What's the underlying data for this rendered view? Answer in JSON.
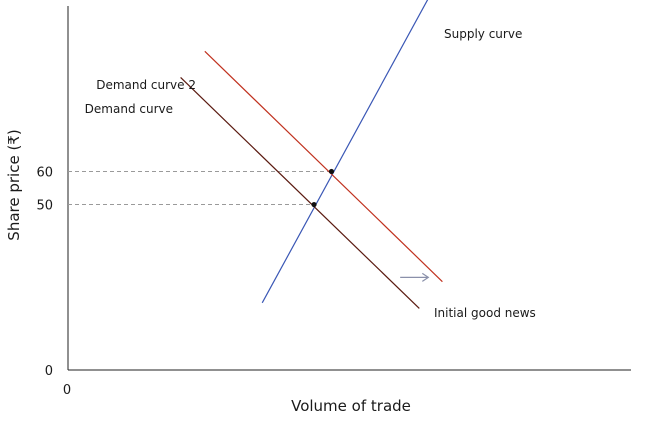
{
  "chart_data": {
    "type": "line",
    "xlabel": "Volume of trade",
    "ylabel": "Share price (₹)",
    "x_tick_labels": [
      "0"
    ],
    "y_ticks": [
      {
        "value": 0,
        "label": "0"
      },
      {
        "value": 50,
        "label": "50"
      },
      {
        "value": 60,
        "label": "60"
      }
    ],
    "xlim": [
      0,
      100
    ],
    "ylim": [
      0,
      110
    ],
    "grid": false,
    "series": [
      {
        "name": "Supply curve",
        "color": "#3a57b5",
        "points": [
          [
            34.5,
            20.3
          ],
          [
            64.2,
            112.9
          ]
        ]
      },
      {
        "name": "Demand curve",
        "color": "#5a1a10",
        "points": [
          [
            20,
            88.4
          ],
          [
            62.4,
            18.6
          ]
        ]
      },
      {
        "name": "Demand curve 2",
        "color": "#c0311e",
        "points": [
          [
            24.3,
            96.3
          ],
          [
            66.5,
            26.7
          ]
        ]
      }
    ],
    "equilibria": [
      {
        "x": 43.7,
        "y": 50
      },
      {
        "x": 46.8,
        "y": 60
      }
    ],
    "annotations": [
      {
        "text": "Initial good news",
        "x": 64.8,
        "y": 19.5
      },
      {
        "arrow_direction": "right",
        "from": [
          59,
          28
        ],
        "to": [
          64,
          28
        ],
        "color": "#8a90aa"
      }
    ]
  }
}
